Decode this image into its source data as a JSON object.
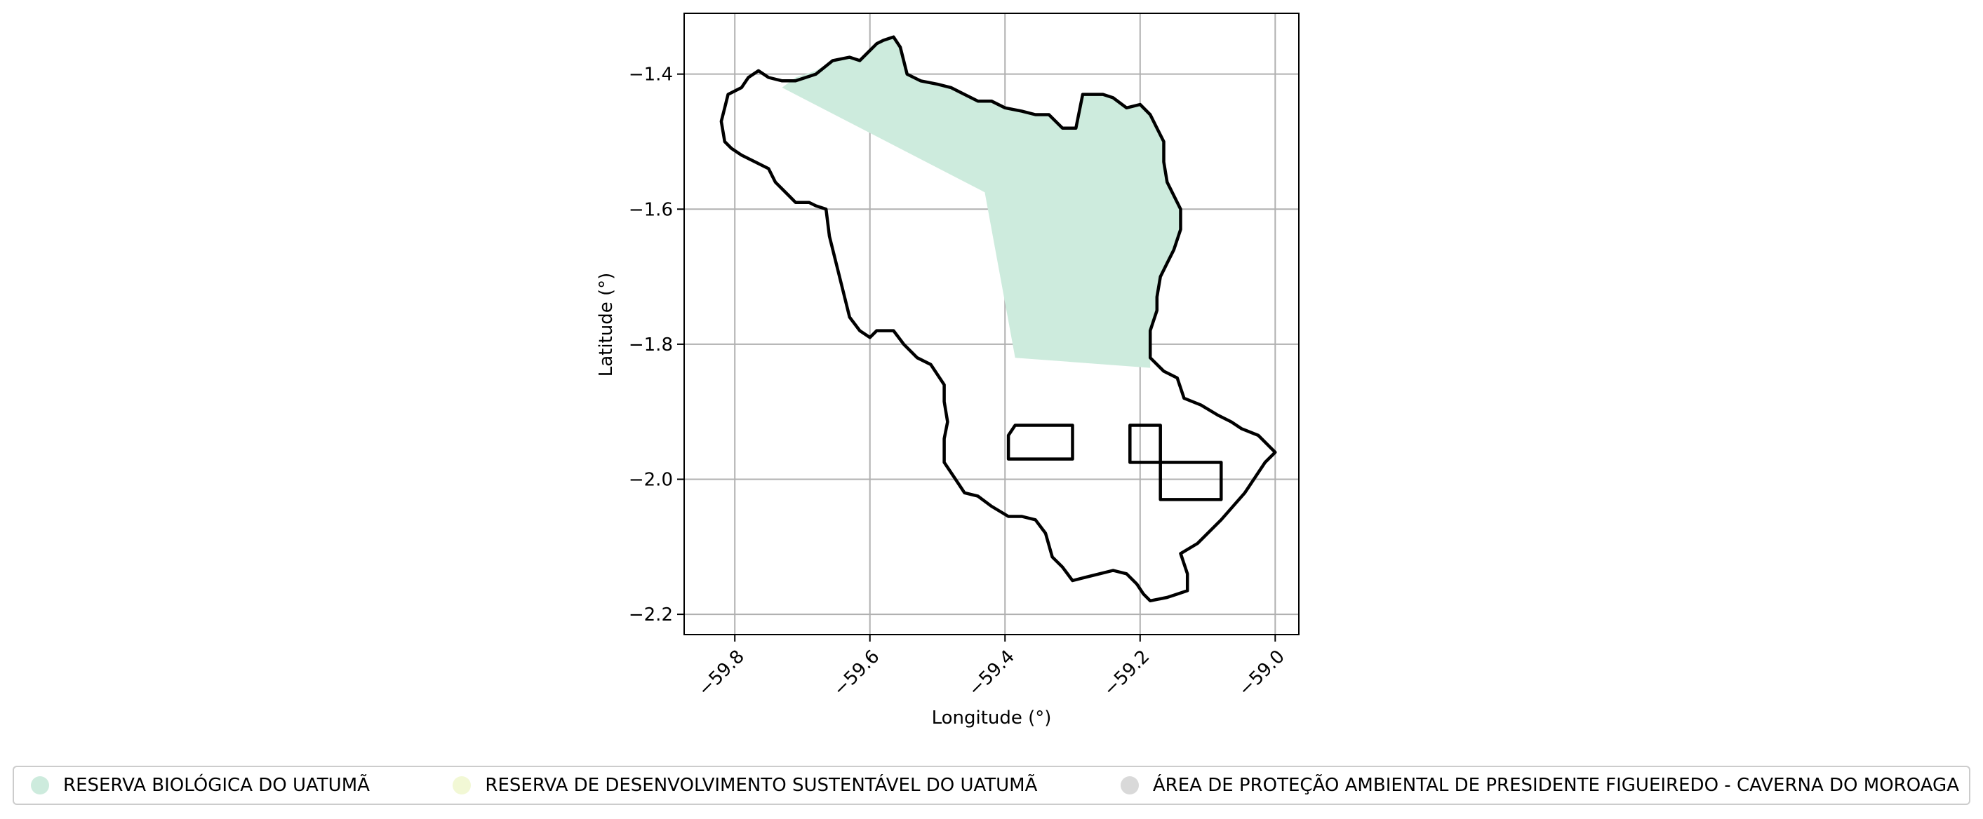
{
  "chart_data": {
    "type": "map",
    "title": "",
    "xlabel": "Longitude (°)",
    "ylabel": "Latitude (°)",
    "xlim": [
      -59.875,
      -58.965
    ],
    "ylim": [
      -2.23,
      -1.31
    ],
    "xticks": [
      -59.8,
      -59.6,
      -59.4,
      -59.2,
      -59.0
    ],
    "xtick_labels": [
      "−59.8",
      "−59.6",
      "−59.4",
      "−59.2",
      "−59.0"
    ],
    "yticks": [
      -1.4,
      -1.6,
      -1.8,
      -2.0,
      -2.2
    ],
    "ytick_labels": [
      "−1.4",
      "−1.6",
      "−1.8",
      "−2.0",
      "−2.2"
    ],
    "grid": true,
    "legend_position": "bottom",
    "municipality_outline": [
      [
        -59.73,
        -1.41
      ],
      [
        -59.71,
        -1.41
      ],
      [
        -59.68,
        -1.4
      ],
      [
        -59.655,
        -1.38
      ],
      [
        -59.63,
        -1.375
      ],
      [
        -59.615,
        -1.38
      ],
      [
        -59.6,
        -1.365
      ],
      [
        -59.59,
        -1.355
      ],
      [
        -59.58,
        -1.35
      ],
      [
        -59.565,
        -1.345
      ],
      [
        -59.555,
        -1.36
      ],
      [
        -59.545,
        -1.4
      ],
      [
        -59.525,
        -1.41
      ],
      [
        -59.5,
        -1.415
      ],
      [
        -59.48,
        -1.42
      ],
      [
        -59.46,
        -1.43
      ],
      [
        -59.44,
        -1.44
      ],
      [
        -59.42,
        -1.44
      ],
      [
        -59.4,
        -1.45
      ],
      [
        -59.375,
        -1.455
      ],
      [
        -59.355,
        -1.46
      ],
      [
        -59.335,
        -1.46
      ],
      [
        -59.315,
        -1.48
      ],
      [
        -59.295,
        -1.48
      ],
      [
        -59.285,
        -1.43
      ],
      [
        -59.27,
        -1.43
      ],
      [
        -59.255,
        -1.43
      ],
      [
        -59.24,
        -1.435
      ],
      [
        -59.22,
        -1.45
      ],
      [
        -59.2,
        -1.445
      ],
      [
        -59.185,
        -1.46
      ],
      [
        -59.175,
        -1.48
      ],
      [
        -59.165,
        -1.5
      ],
      [
        -59.165,
        -1.53
      ],
      [
        -59.16,
        -1.56
      ],
      [
        -59.14,
        -1.6
      ],
      [
        -59.14,
        -1.63
      ],
      [
        -59.15,
        -1.66
      ],
      [
        -59.16,
        -1.68
      ],
      [
        -59.17,
        -1.7
      ],
      [
        -59.175,
        -1.73
      ],
      [
        -59.175,
        -1.75
      ],
      [
        -59.185,
        -1.78
      ],
      [
        -59.185,
        -1.82
      ],
      [
        -59.165,
        -1.84
      ],
      [
        -59.145,
        -1.85
      ],
      [
        -59.135,
        -1.88
      ],
      [
        -59.11,
        -1.89
      ],
      [
        -59.085,
        -1.905
      ],
      [
        -59.065,
        -1.915
      ],
      [
        -59.05,
        -1.925
      ],
      [
        -59.025,
        -1.935
      ],
      [
        -59.0,
        -1.96
      ],
      [
        -59.015,
        -1.975
      ],
      [
        -59.045,
        -2.02
      ],
      [
        -59.08,
        -2.06
      ],
      [
        -59.115,
        -2.095
      ],
      [
        -59.14,
        -2.11
      ],
      [
        -59.13,
        -2.14
      ],
      [
        -59.13,
        -2.165
      ],
      [
        -59.145,
        -2.17
      ],
      [
        -59.16,
        -2.175
      ],
      [
        -59.185,
        -2.18
      ],
      [
        -59.195,
        -2.17
      ],
      [
        -59.205,
        -2.155
      ],
      [
        -59.22,
        -2.14
      ],
      [
        -59.24,
        -2.135
      ],
      [
        -59.26,
        -2.14
      ],
      [
        -59.28,
        -2.145
      ],
      [
        -59.3,
        -2.15
      ],
      [
        -59.315,
        -2.13
      ],
      [
        -59.33,
        -2.115
      ],
      [
        -59.34,
        -2.08
      ],
      [
        -59.355,
        -2.06
      ],
      [
        -59.375,
        -2.055
      ],
      [
        -59.395,
        -2.055
      ],
      [
        -59.42,
        -2.04
      ],
      [
        -59.44,
        -2.025
      ],
      [
        -59.46,
        -2.02
      ],
      [
        -59.47,
        -2.005
      ],
      [
        -59.49,
        -1.975
      ],
      [
        -59.49,
        -1.94
      ],
      [
        -59.485,
        -1.915
      ],
      [
        -59.49,
        -1.885
      ],
      [
        -59.49,
        -1.86
      ],
      [
        -59.51,
        -1.83
      ],
      [
        -59.53,
        -1.82
      ],
      [
        -59.55,
        -1.8
      ],
      [
        -59.565,
        -1.78
      ],
      [
        -59.575,
        -1.78
      ],
      [
        -59.59,
        -1.78
      ],
      [
        -59.6,
        -1.79
      ],
      [
        -59.615,
        -1.78
      ],
      [
        -59.63,
        -1.76
      ],
      [
        -59.64,
        -1.72
      ],
      [
        -59.65,
        -1.68
      ],
      [
        -59.66,
        -1.64
      ],
      [
        -59.665,
        -1.6
      ],
      [
        -59.68,
        -1.595
      ],
      [
        -59.69,
        -1.59
      ],
      [
        -59.71,
        -1.59
      ],
      [
        -59.72,
        -1.58
      ],
      [
        -59.74,
        -1.56
      ],
      [
        -59.75,
        -1.54
      ],
      [
        -59.77,
        -1.53
      ],
      [
        -59.79,
        -1.52
      ],
      [
        -59.805,
        -1.51
      ],
      [
        -59.815,
        -1.5
      ],
      [
        -59.82,
        -1.47
      ],
      [
        -59.815,
        -1.45
      ],
      [
        -59.81,
        -1.43
      ],
      [
        -59.79,
        -1.42
      ],
      [
        -59.78,
        -1.405
      ],
      [
        -59.765,
        -1.395
      ],
      [
        -59.75,
        -1.405
      ],
      [
        -59.73,
        -1.41
      ]
    ],
    "inner_polygons": [
      [
        [
          -59.385,
          -1.92
        ],
        [
          -59.3,
          -1.92
        ],
        [
          -59.3,
          -1.97
        ],
        [
          -59.395,
          -1.97
        ],
        [
          -59.395,
          -1.935
        ],
        [
          -59.385,
          -1.92
        ]
      ],
      [
        [
          -59.215,
          -1.92
        ],
        [
          -59.17,
          -1.92
        ],
        [
          -59.17,
          -1.975
        ],
        [
          -59.215,
          -1.975
        ],
        [
          -59.215,
          -1.92
        ]
      ],
      [
        [
          -59.17,
          -1.975
        ],
        [
          -59.08,
          -1.975
        ],
        [
          -59.08,
          -2.03
        ],
        [
          -59.17,
          -2.03
        ],
        [
          -59.17,
          -1.975
        ]
      ]
    ],
    "reserve_polygon": [
      [
        -59.73,
        -1.42
      ],
      [
        -59.71,
        -1.405
      ],
      [
        -59.68,
        -1.395
      ],
      [
        -59.655,
        -1.38
      ],
      [
        -59.63,
        -1.375
      ],
      [
        -59.615,
        -1.38
      ],
      [
        -59.6,
        -1.365
      ],
      [
        -59.59,
        -1.355
      ],
      [
        -59.58,
        -1.35
      ],
      [
        -59.565,
        -1.345
      ],
      [
        -59.555,
        -1.36
      ],
      [
        -59.545,
        -1.4
      ],
      [
        -59.525,
        -1.41
      ],
      [
        -59.5,
        -1.415
      ],
      [
        -59.48,
        -1.42
      ],
      [
        -59.46,
        -1.43
      ],
      [
        -59.44,
        -1.44
      ],
      [
        -59.42,
        -1.44
      ],
      [
        -59.4,
        -1.45
      ],
      [
        -59.375,
        -1.455
      ],
      [
        -59.355,
        -1.46
      ],
      [
        -59.335,
        -1.46
      ],
      [
        -59.315,
        -1.48
      ],
      [
        -59.295,
        -1.48
      ],
      [
        -59.285,
        -1.43
      ],
      [
        -59.27,
        -1.43
      ],
      [
        -59.255,
        -1.43
      ],
      [
        -59.24,
        -1.435
      ],
      [
        -59.22,
        -1.45
      ],
      [
        -59.2,
        -1.445
      ],
      [
        -59.185,
        -1.46
      ],
      [
        -59.175,
        -1.48
      ],
      [
        -59.165,
        -1.5
      ],
      [
        -59.165,
        -1.53
      ],
      [
        -59.16,
        -1.56
      ],
      [
        -59.14,
        -1.6
      ],
      [
        -59.14,
        -1.63
      ],
      [
        -59.15,
        -1.66
      ],
      [
        -59.16,
        -1.68
      ],
      [
        -59.17,
        -1.7
      ],
      [
        -59.175,
        -1.73
      ],
      [
        -59.175,
        -1.75
      ],
      [
        -59.185,
        -1.78
      ],
      [
        -59.185,
        -1.835
      ],
      [
        -59.385,
        -1.82
      ],
      [
        -59.43,
        -1.575
      ],
      [
        -59.73,
        -1.42
      ]
    ],
    "legend": [
      {
        "label": "RESERVA BIOLÓGICA DO UATUMÃ",
        "color": "#cdebdd"
      },
      {
        "label": "RESERVA DE DESENVOLVIMENTO SUSTENTÁVEL DO UATUMÃ",
        "color": "#f2f8d5"
      },
      {
        "label": "ÁREA DE PROTEÇÃO AMBIENTAL DE PRESIDENTE FIGUEIREDO - CAVERNA DO MOROAGA",
        "color": "#d9d9d9"
      }
    ],
    "colors": {
      "reserve_fill": "#cdebdd",
      "outline": "#000000",
      "grid": "#b0b0b0"
    }
  }
}
